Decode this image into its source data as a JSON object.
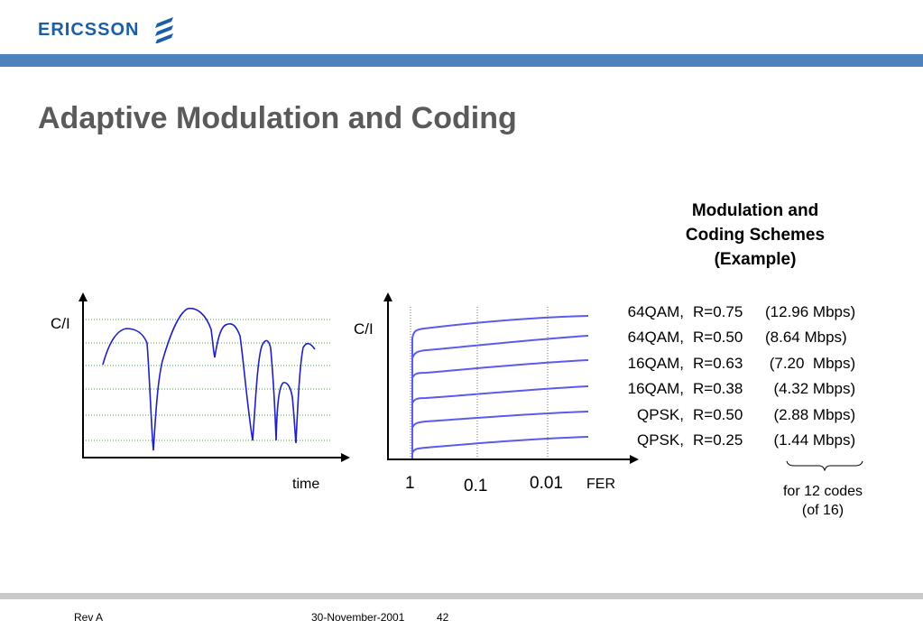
{
  "header": {
    "logo_text": "ERICSSON",
    "brand_color": "#1a5ea8",
    "bar_color": "#4f81bd"
  },
  "title": "Adaptive Modulation and Coding",
  "left_chart": {
    "ylabel": "C/I",
    "xlabel": "time",
    "line_color": "#2020c0",
    "grid_color": "#33aa33"
  },
  "right_chart": {
    "ylabel": "C/I",
    "xlabel": "FER",
    "tick_labels": [
      "1",
      "0.1",
      "0.01"
    ],
    "line_color": "#5b5bf0"
  },
  "mcs": {
    "heading_lines": [
      "Modulation and",
      "Coding Schemes",
      "(Example)"
    ],
    "rows": [
      {
        "mod": "64QAM,",
        "rate": "R=0.75",
        "bw": "(12.96 Mbps)"
      },
      {
        "mod": "64QAM,",
        "rate": "R=0.50",
        "bw": "(8.64 Mbps)"
      },
      {
        "mod": "16QAM,",
        "rate": "R=0.63",
        "bw": " (7.20  Mbps)"
      },
      {
        "mod": "16QAM,",
        "rate": "R=0.38",
        "bw": "  (4.32 Mbps)"
      },
      {
        "mod": "QPSK,",
        "rate": "R=0.50",
        "bw": "  (2.88 Mbps)"
      },
      {
        "mod": "QPSK,",
        "rate": "R=0.25",
        "bw": "  (1.44 Mbps)"
      }
    ],
    "note_lines": [
      "for 12 codes",
      "(of 16)"
    ]
  },
  "footer": {
    "rev": "Rev A",
    "date": "30-November-2001",
    "page": "42"
  }
}
